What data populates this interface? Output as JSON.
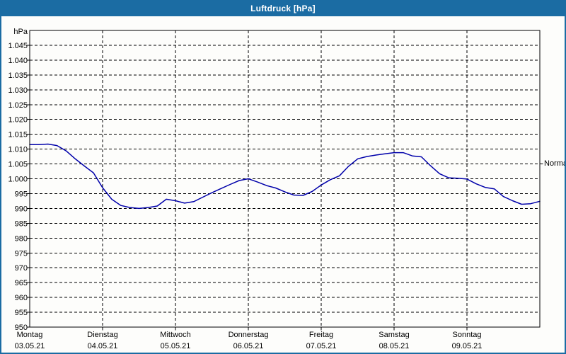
{
  "window": {
    "title": "Luftdruck [hPa]"
  },
  "colors": {
    "accent": "#1b6ca3",
    "line": "#0000aa",
    "background": "#fdfdfb",
    "axis": "#000000"
  },
  "chart_data": {
    "type": "line",
    "title": "Luftdruck [hPa]",
    "y_unit": "hPa",
    "ylim": [
      950,
      1050
    ],
    "y_tick_step": 5,
    "grid": "dashed",
    "legend_position": "none",
    "x_range_hours": [
      0,
      168
    ],
    "y_ticks": [
      {
        "value": 1045,
        "label": "1.045"
      },
      {
        "value": 1040,
        "label": "1.040"
      },
      {
        "value": 1035,
        "label": "1.035"
      },
      {
        "value": 1030,
        "label": "1.030"
      },
      {
        "value": 1025,
        "label": "1.025"
      },
      {
        "value": 1020,
        "label": "1.020"
      },
      {
        "value": 1015,
        "label": "1.015"
      },
      {
        "value": 1010,
        "label": "1.010"
      },
      {
        "value": 1005,
        "label": "1.005"
      },
      {
        "value": 1000,
        "label": "1.000"
      },
      {
        "value": 995,
        "label": "995"
      },
      {
        "value": 990,
        "label": "990"
      },
      {
        "value": 985,
        "label": "985"
      },
      {
        "value": 980,
        "label": "980"
      },
      {
        "value": 975,
        "label": "975"
      },
      {
        "value": 970,
        "label": "970"
      },
      {
        "value": 965,
        "label": "965"
      },
      {
        "value": 960,
        "label": "960"
      },
      {
        "value": 955,
        "label": "955"
      },
      {
        "value": 950,
        "label": "950"
      }
    ],
    "x_days": [
      {
        "name": "Montag",
        "date": "03.05.21"
      },
      {
        "name": "Dienstag",
        "date": "04.05.21"
      },
      {
        "name": "Mittwoch",
        "date": "05.05.21"
      },
      {
        "name": "Donnerstag",
        "date": "06.05.21"
      },
      {
        "name": "Freitag",
        "date": "07.05.21"
      },
      {
        "name": "Samstag",
        "date": "08.05.21"
      },
      {
        "name": "Sonntag",
        "date": "09.05.21"
      }
    ],
    "annotations": [
      {
        "label": "Normal",
        "value": 1005,
        "side": "right"
      }
    ],
    "series": [
      {
        "name": "Luftdruck",
        "color": "#0000aa",
        "start_hour": 0,
        "step_hours": 3,
        "values": [
          1011.5,
          1011.5,
          1011.7,
          1011.2,
          1009.4,
          1006.7,
          1004.3,
          1002.0,
          997.0,
          993.1,
          991.0,
          990.3,
          990.0,
          990.3,
          990.8,
          993.1,
          992.6,
          991.8,
          992.3,
          993.8,
          995.3,
          996.7,
          998.1,
          999.4,
          1000.0,
          998.9,
          997.7,
          996.9,
          995.6,
          994.5,
          994.4,
          995.7,
          997.9,
          999.7,
          1001.0,
          1004.2,
          1006.7,
          1007.5,
          1008.0,
          1008.4,
          1008.8,
          1008.8,
          1007.7,
          1007.4,
          1004.4,
          1001.7,
          1000.3,
          1000.2,
          999.9,
          998.3,
          997.1,
          996.6,
          994.0,
          992.6,
          991.4,
          991.6,
          992.4
        ]
      }
    ]
  }
}
